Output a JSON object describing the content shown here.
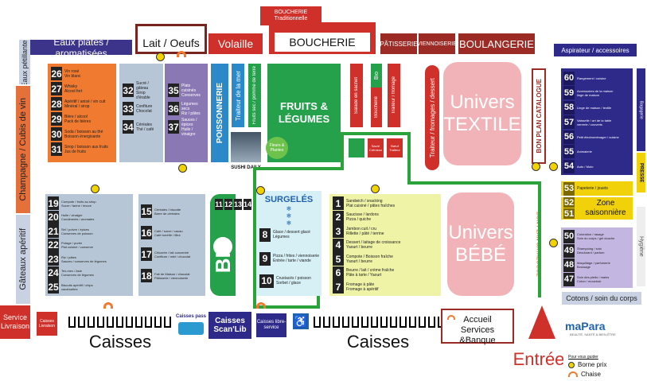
{
  "top_bar": {
    "boucherie_traditionnelle": "BOUCHERIE\nTraditionnelle",
    "eaux_plates": "Eaux plates / aromatisées",
    "lait_oeufs": "Lait / Oeufs",
    "volaille": "Volaille",
    "boucherie": "BOUCHERIE",
    "patisserie": "PÂTISSERIE",
    "viennoiserie": "VIENNOISERIE",
    "boulangerie": "BOULANGERIE"
  },
  "left_wall": {
    "eaux_petillantes": "Eaux pétillantes",
    "cubis_champagne": "Champagne / Cubis de vin",
    "gateaux_aperitif": "Gâteaux apéritif"
  },
  "right_wall": {
    "aspirateur": "Aspirateur / accessoires",
    "bagagerie": "Bagagerie",
    "presse": "PRESSE",
    "hygiene": "Hygiène",
    "cotons": "Cotons / soin du corps",
    "zone_saisonniere": "Zone saisonnière",
    "bon_plan_catalogue": "BON PLAN CATALOGUE",
    "bon_plan_catalogue_2": "BON PLAN CATALOGUE"
  },
  "aisles_top_left": [
    {
      "num": "26",
      "text": "Vin rosé\nVin blanc"
    },
    {
      "num": "27",
      "text": "Whisky\nAlcool fort"
    },
    {
      "num": "28",
      "text": "Apéritif / anisé / vin cuit\nMinéral / sirop"
    },
    {
      "num": "29",
      "text": "Bière / alcool\nPack de bières"
    },
    {
      "num": "30",
      "text": "Soda / boisson au thé\nBoisson énergisante"
    },
    {
      "num": "31",
      "text": "Sirop / boisson aux fruits\nJus de fruits"
    }
  ],
  "aisles_top_mid1": [
    {
      "num": "32",
      "text": "Sucré / gâteau\nSirop d'érable"
    },
    {
      "num": "33",
      "text": "Confiture\nChocolat"
    },
    {
      "num": "34",
      "text": "Céréales\nThé / café"
    }
  ],
  "aisles_top_mid2": [
    {
      "num": "35",
      "text": "Plats cuisinés\nConserves"
    },
    {
      "num": "36",
      "text": "Légumes secs\nRiz / pâtes"
    },
    {
      "num": "37",
      "text": "Sauces / épices\nHuile / vinaigre"
    }
  ],
  "fresh": {
    "poissonnerie": "POISSONNERIE",
    "traiteur_mer": "Traiteur de la mer",
    "fruits_pomme_terre": "Fruits sec / pomme de terre",
    "fruits_legumes": "FRUITS & LÉGUMES",
    "fleurs_plantes": "Fleurs & Plantes",
    "sushi_daily": "SUSHI DAILY",
    "salade_sachet": "Salade en sachet",
    "bio": "Bio",
    "boucherie_v": "Boucherie",
    "traiteur_fromage": "Traiteur / fromage",
    "traiteur_fromages_dessert": "Traiteur / fromages / dessert",
    "small1": "",
    "small2": "Sacré Crémeux",
    "small3": "Bœuf Traiteur"
  },
  "univers": {
    "textile": "Univers TEXTILE",
    "bebe": "Univers BÉBÉ"
  },
  "aisles_right_top": [
    {
      "num": "60",
      "text": "Rangement / cuisine"
    },
    {
      "num": "59",
      "text": "Accessoires de la maison\nlinge de maison"
    },
    {
      "num": "58",
      "text": "Linge de maison / textile"
    },
    {
      "num": "57",
      "text": "Vaisselle / art de la table\nverrerie / couverts"
    },
    {
      "num": "56",
      "text": "Petit électroménager / cuisine"
    },
    {
      "num": "55",
      "text": "Animalerie"
    },
    {
      "num": "54",
      "text": "Auto / Moto"
    }
  ],
  "aisle_53": {
    "num": "53",
    "text": "Papeterie / jouets"
  },
  "zone_51_52": {
    "n1": "52",
    "n2": "51"
  },
  "aisles_right_bottom": [
    {
      "num": "50",
      "text": "Coloration / rasage\nSoin du corps / gel douche"
    },
    {
      "num": "49",
      "text": "Shampoing / soin\nDéodorant / parfum"
    },
    {
      "num": "48",
      "text": "Maquillage / parfumerie\nBrossage"
    },
    {
      "num": "47",
      "text": "Soin des pieds / mains\nCoton / mouchoir"
    }
  ],
  "aisles_left_bottom": [
    {
      "num": "19",
      "text": "Compote / fruits au sirop\nSucre / farine / levure"
    },
    {
      "num": "20",
      "text": "Huile / vinaigre\nCondiments / aromates"
    },
    {
      "num": "21",
      "text": "Sel / poivre / épices\nConserves de poisson"
    },
    {
      "num": "22",
      "text": "Potage / purée\nPlat cuisiné / conserve"
    },
    {
      "num": "23",
      "text": "Riz / pâtes\nSauces / conserves de légumes"
    },
    {
      "num": "24",
      "text": "Tex-mex / Asie\nConserves de légumes"
    },
    {
      "num": "25",
      "text": "Biscuits apéritif / chips\ncacahuètes"
    }
  ],
  "aisles_left_bottom2": [
    {
      "num": "15",
      "text": "Céréales / biscotte\nBarre de céréales"
    },
    {
      "num": "16",
      "text": "Café / sucre / cacao\nCafé torréfié / filtre"
    },
    {
      "num": "17",
      "text": "Chicorée / lait concentré\nConfiture / miel / chocolat"
    },
    {
      "num": "18",
      "text": "Fait de Maison / chocolat\nPâtisserie / viennoiserie"
    }
  ],
  "bio_block": {
    "label": "BIO",
    "n1": "11",
    "n2": "12",
    "n3": "13",
    "n4": "14"
  },
  "surgeles": {
    "title": "SURGELÉS",
    "items": [
      {
        "num": "8",
        "text": "Glace / dessert glacé\nLégumes"
      },
      {
        "num": "9",
        "text": "Pizza / frites / viennoiserie\nEntrée / tarte / viande"
      },
      {
        "num": "10",
        "text": "Crustacés / poisson\nSorbet / glace"
      }
    ]
  },
  "aisles_center": [
    {
      "num": "1",
      "text": "Sandwich / snacking\nPlat cuisiné / pâtes fraîches"
    },
    {
      "num": "2",
      "text": "Saucisse / lardons\nPizza / quiche"
    },
    {
      "num": "3",
      "text": "Jambon cuit / cru\nRillette / pâté / terrine"
    },
    {
      "num": "4",
      "text": "Dessert / laitage de croissance\nYaourt / beurre"
    },
    {
      "num": "5",
      "text": "Compote / Boisson fraîche\nYaourt / beurre"
    },
    {
      "num": "6",
      "text": "Beurre / lait / crème fraîche\nPâte à tarte / Yaourt"
    },
    {
      "num": "7",
      "text": "Fromage à pâte\nFromage à apéritif"
    }
  ],
  "bottom": {
    "service_livraison": "Service Livraison",
    "caisses_livraison": "Caisses Livraison",
    "caisses_left": "Caisses",
    "caisses_pass": "Caisses pass",
    "caisses_scan": "Caisses Scan'Lib",
    "caisses_libre": "Caisses libre-service",
    "caisses_right": "Caisses",
    "accueil": "Accueil\nServices &Banque",
    "entree": "Entrée",
    "mapara": "maPara",
    "mapara_sub": "BEAUTÉ, SANTÉ & BIEN-ÊTRE"
  },
  "legend": {
    "title": "Pour vous guider",
    "borne": "Borne prix",
    "chaise": "Chaise"
  },
  "colors": {
    "orange": "#f07a30",
    "blue_grey": "#b6c6d6",
    "purple": "#8a78b4",
    "green": "#24a14a",
    "maroon": "#9c2b25",
    "red": "#d0302a",
    "pink": "#f2b3b8",
    "navy": "#2e2a8a",
    "yellow": "#f0d10a",
    "light_yellow": "#eef3a6",
    "light_cyan": "#d6f0f5"
  }
}
